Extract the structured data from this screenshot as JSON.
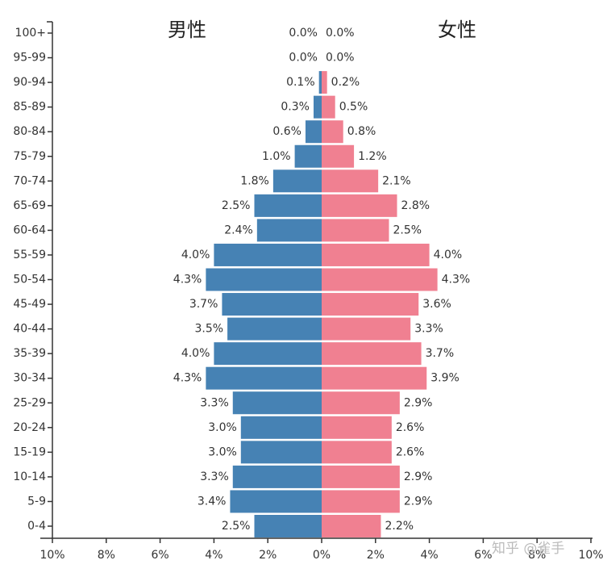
{
  "chart_data": {
    "type": "pyramid",
    "left_title": "男性",
    "right_title": "女性",
    "categories": [
      "100+",
      "95-99",
      "90-94",
      "85-89",
      "80-84",
      "75-79",
      "70-74",
      "65-69",
      "60-64",
      "55-59",
      "50-54",
      "45-49",
      "40-44",
      "35-39",
      "30-34",
      "25-29",
      "20-24",
      "15-19",
      "10-14",
      "5-9",
      "0-4"
    ],
    "series": [
      {
        "name": "男性",
        "color": "#4682b4",
        "values": [
          0.0,
          0.0,
          0.1,
          0.3,
          0.6,
          1.0,
          1.8,
          2.5,
          2.4,
          4.0,
          4.3,
          3.7,
          3.5,
          4.0,
          4.3,
          3.3,
          3.0,
          3.0,
          3.3,
          3.4,
          2.5
        ],
        "value_labels": [
          "0.0%",
          "0.0%",
          "0.1%",
          "0.3%",
          "0.6%",
          "1.0%",
          "1.8%",
          "2.5%",
          "2.4%",
          "4.0%",
          "4.3%",
          "3.7%",
          "3.5%",
          "4.0%",
          "4.3%",
          "3.3%",
          "3.0%",
          "3.0%",
          "3.3%",
          "3.4%",
          "2.5%"
        ]
      },
      {
        "name": "女性",
        "color": "#f08091",
        "values": [
          0.0,
          0.0,
          0.2,
          0.5,
          0.8,
          1.2,
          2.1,
          2.8,
          2.5,
          4.0,
          4.3,
          3.6,
          3.3,
          3.7,
          3.9,
          2.9,
          2.6,
          2.6,
          2.9,
          2.9,
          2.2
        ],
        "value_labels": [
          "0.0%",
          "0.0%",
          "0.2%",
          "0.5%",
          "0.8%",
          "1.2%",
          "2.1%",
          "2.8%",
          "2.5%",
          "4.0%",
          "4.3%",
          "3.6%",
          "3.3%",
          "3.7%",
          "3.9%",
          "2.9%",
          "2.6%",
          "2.6%",
          "2.9%",
          "2.9%",
          "2.2%"
        ]
      }
    ],
    "xlim": [
      -10,
      10
    ],
    "xticks": [
      {
        "value": -10,
        "label": "10%"
      },
      {
        "value": -8,
        "label": "8%"
      },
      {
        "value": -6,
        "label": "6%"
      },
      {
        "value": -4,
        "label": "4%"
      },
      {
        "value": -2,
        "label": "2%"
      },
      {
        "value": 0,
        "label": "0%"
      },
      {
        "value": 2,
        "label": "2%"
      },
      {
        "value": 4,
        "label": "4%"
      },
      {
        "value": 6,
        "label": "6%"
      },
      {
        "value": 8,
        "label": "8%"
      },
      {
        "value": 10,
        "label": "10%"
      }
    ],
    "watermark": "知乎 @雀手"
  }
}
